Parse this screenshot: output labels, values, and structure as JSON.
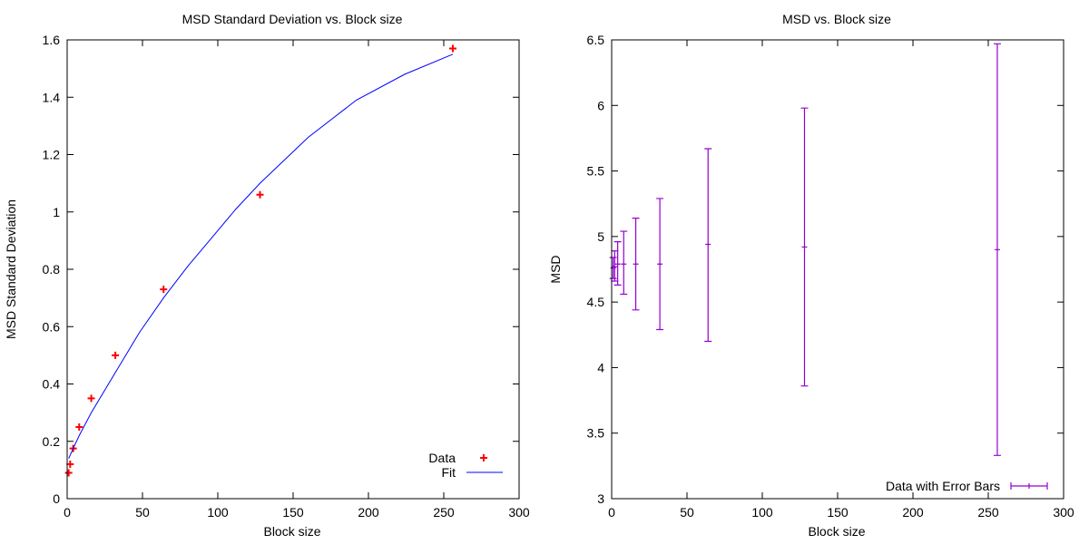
{
  "chart_data": [
    {
      "type": "scatter",
      "title": "MSD Standard Deviation vs. Block size",
      "xlabel": "Block size",
      "ylabel": "MSD Standard Deviation",
      "xlim": [
        0,
        300
      ],
      "ylim": [
        0,
        1.6
      ],
      "x_ticks": [
        "0",
        "50",
        "100",
        "150",
        "200",
        "250",
        "300"
      ],
      "y_ticks": [
        "0",
        "0.2",
        "0.4",
        "0.6",
        "0.8",
        "1",
        "1.2",
        "1.4",
        "1.6"
      ],
      "grid": false,
      "legend_position": "bottom-right",
      "series": [
        {
          "name": "Data",
          "style": "points-plus",
          "color": "#ff0000",
          "x": [
            1,
            2,
            4,
            8,
            16,
            32,
            64,
            128,
            256
          ],
          "y": [
            0.09,
            0.12,
            0.175,
            0.25,
            0.35,
            0.5,
            0.73,
            1.06,
            1.57
          ]
        },
        {
          "name": "Fit",
          "style": "line",
          "color": "#0000ff",
          "x": [
            1,
            4,
            8,
            16,
            32,
            48,
            64,
            80,
            96,
            112,
            128,
            160,
            192,
            224,
            256
          ],
          "y": [
            0.14,
            0.175,
            0.22,
            0.3,
            0.44,
            0.58,
            0.7,
            0.81,
            0.91,
            1.01,
            1.1,
            1.26,
            1.39,
            1.48,
            1.55
          ]
        }
      ]
    },
    {
      "type": "scatter",
      "title": "MSD vs. Block size",
      "xlabel": "Block size",
      "ylabel": "MSD",
      "xlim": [
        0,
        300
      ],
      "ylim": [
        3,
        6.5
      ],
      "x_ticks": [
        "0",
        "50",
        "100",
        "150",
        "200",
        "250",
        "300"
      ],
      "y_ticks": [
        "3",
        "3.5",
        "4",
        "4.5",
        "5",
        "5.5",
        "6",
        "6.5"
      ],
      "grid": false,
      "legend_position": "bottom-right",
      "series": [
        {
          "name": "Data with Error Bars",
          "style": "errorbars",
          "color": "#9400d3",
          "x": [
            1,
            2,
            4,
            8,
            16,
            32,
            64,
            128,
            256
          ],
          "y": [
            4.76,
            4.77,
            4.79,
            4.79,
            4.79,
            4.79,
            4.94,
            4.92,
            4.9
          ],
          "y_low": [
            4.68,
            4.66,
            4.63,
            4.56,
            4.44,
            4.29,
            4.2,
            3.86,
            3.33
          ],
          "y_high": [
            4.84,
            4.89,
            4.96,
            5.04,
            5.14,
            5.29,
            5.67,
            5.98,
            6.47
          ]
        }
      ]
    }
  ]
}
